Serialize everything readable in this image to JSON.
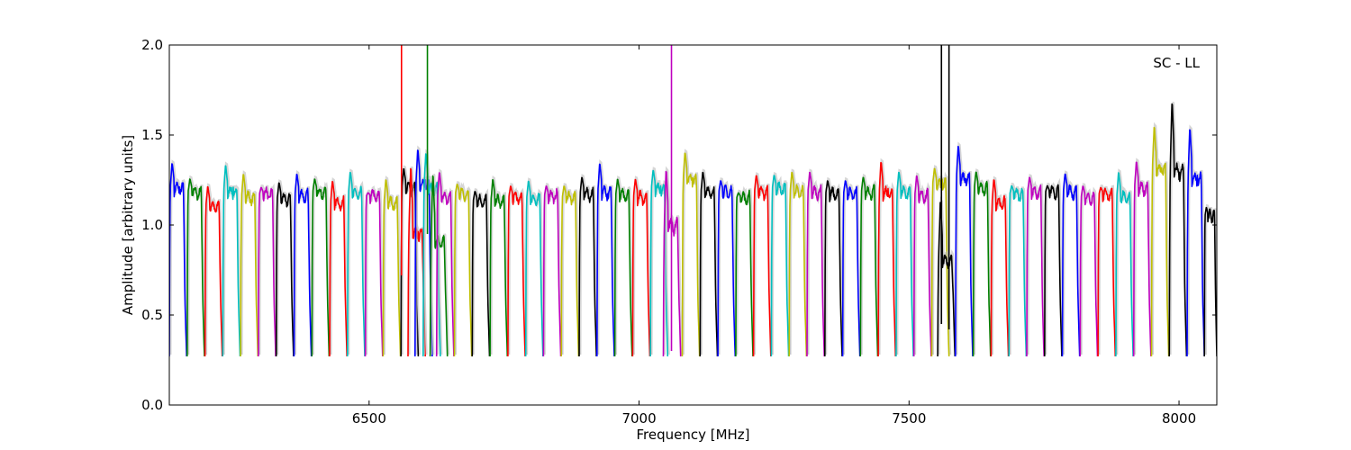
{
  "chart_data": {
    "type": "line",
    "annotation": "SC - LL",
    "xlabel": "Frequency [MHz]",
    "ylabel": "Amplitude [arbitrary units]",
    "xlim": [
      6130,
      8070
    ],
    "ylim": [
      0.0,
      2.0
    ],
    "xticks": [
      6500,
      7000,
      7500,
      8000
    ],
    "xtick_labels": [
      "6500",
      "7000",
      "7500",
      "8000"
    ],
    "yticks": [
      0.0,
      0.5,
      1.0,
      1.5,
      2.0
    ],
    "ytick_labels": [
      "0.0",
      "0.5",
      "1.0",
      "1.5",
      "2.0"
    ],
    "grid": false,
    "legend": "none",
    "colors": [
      "#0000ff",
      "#008000",
      "#ff0000",
      "#00bfbf",
      "#bfbf00",
      "#000000",
      "#bf00bf"
    ],
    "shadow_color": "#bbbbbb",
    "channel_width_mhz": 32,
    "series": [
      {
        "color": "#0000ff",
        "x_start": 6130,
        "x_end": 6162,
        "level": 1.2,
        "peak": 1.35
      },
      {
        "color": "#008000",
        "x_start": 6163,
        "x_end": 6195,
        "level": 1.18,
        "peak": 1.26
      },
      {
        "color": "#ff0000",
        "x_start": 6196,
        "x_end": 6228,
        "level": 1.1,
        "peak": 1.22
      },
      {
        "color": "#00bfbf",
        "x_start": 6229,
        "x_end": 6261,
        "level": 1.18,
        "peak": 1.34
      },
      {
        "color": "#bfbf00",
        "x_start": 6262,
        "x_end": 6294,
        "level": 1.15,
        "peak": 1.29
      },
      {
        "color": "#bf00bf",
        "x_start": 6295,
        "x_end": 6327,
        "level": 1.17,
        "peak": 1.21
      },
      {
        "color": "#000000",
        "x_start": 6328,
        "x_end": 6360,
        "level": 1.14,
        "peak": 1.24
      },
      {
        "color": "#0000ff",
        "x_start": 6361,
        "x_end": 6393,
        "level": 1.16,
        "peak": 1.29
      },
      {
        "color": "#008000",
        "x_start": 6394,
        "x_end": 6426,
        "level": 1.18,
        "peak": 1.26
      },
      {
        "color": "#ff0000",
        "x_start": 6427,
        "x_end": 6459,
        "level": 1.12,
        "peak": 1.25
      },
      {
        "color": "#00bfbf",
        "x_start": 6460,
        "x_end": 6492,
        "level": 1.17,
        "peak": 1.3
      },
      {
        "color": "#bf00bf",
        "x_start": 6493,
        "x_end": 6525,
        "level": 1.16,
        "peak": 1.18
      },
      {
        "color": "#bfbf00",
        "x_start": 6526,
        "x_end": 6558,
        "level": 1.12,
        "peak": 1.26
      },
      {
        "color": "#000000",
        "x_start": 6559,
        "x_end": 6591,
        "level": 1.2,
        "peak": 1.32
      },
      {
        "color": "#ff0000",
        "x_start": 6572,
        "x_end": 6604,
        "level": 0.95,
        "peak": 1.34
      },
      {
        "color": "#0000ff",
        "x_start": 6585,
        "x_end": 6617,
        "level": 1.22,
        "peak": 1.43
      },
      {
        "color": "#00bfbf",
        "x_start": 6600,
        "x_end": 6632,
        "level": 1.2,
        "peak": 1.41
      },
      {
        "color": "#008000",
        "x_start": 6613,
        "x_end": 6645,
        "level": 0.9,
        "peak": 1.3
      },
      {
        "color": "#bf00bf",
        "x_start": 6625,
        "x_end": 6657,
        "level": 1.15,
        "peak": 1.3
      },
      {
        "color": "#bfbf00",
        "x_start": 6658,
        "x_end": 6690,
        "level": 1.17,
        "peak": 1.23
      },
      {
        "color": "#000000",
        "x_start": 6691,
        "x_end": 6723,
        "level": 1.13,
        "peak": 1.19
      },
      {
        "color": "#008000",
        "x_start": 6724,
        "x_end": 6756,
        "level": 1.13,
        "peak": 1.26
      },
      {
        "color": "#ff0000",
        "x_start": 6757,
        "x_end": 6789,
        "level": 1.15,
        "peak": 1.22
      },
      {
        "color": "#00bfbf",
        "x_start": 6790,
        "x_end": 6822,
        "level": 1.14,
        "peak": 1.25
      },
      {
        "color": "#bf00bf",
        "x_start": 6823,
        "x_end": 6855,
        "level": 1.16,
        "peak": 1.22
      },
      {
        "color": "#bfbf00",
        "x_start": 6856,
        "x_end": 6888,
        "level": 1.15,
        "peak": 1.22
      },
      {
        "color": "#000000",
        "x_start": 6889,
        "x_end": 6921,
        "level": 1.17,
        "peak": 1.27
      },
      {
        "color": "#0000ff",
        "x_start": 6922,
        "x_end": 6954,
        "level": 1.18,
        "peak": 1.35
      },
      {
        "color": "#008000",
        "x_start": 6955,
        "x_end": 6987,
        "level": 1.16,
        "peak": 1.26
      },
      {
        "color": "#ff0000",
        "x_start": 6988,
        "x_end": 7020,
        "level": 1.15,
        "peak": 1.26
      },
      {
        "color": "#00bfbf",
        "x_start": 7021,
        "x_end": 7053,
        "level": 1.2,
        "peak": 1.31
      },
      {
        "color": "#bf00bf",
        "x_start": 7045,
        "x_end": 7077,
        "level": 1.0,
        "peak": 1.32
      },
      {
        "color": "#bfbf00",
        "x_start": 7080,
        "x_end": 7112,
        "level": 1.25,
        "peak": 1.41
      },
      {
        "color": "#000000",
        "x_start": 7113,
        "x_end": 7145,
        "level": 1.18,
        "peak": 1.3
      },
      {
        "color": "#0000ff",
        "x_start": 7146,
        "x_end": 7178,
        "level": 1.18,
        "peak": 1.25
      },
      {
        "color": "#008000",
        "x_start": 7179,
        "x_end": 7211,
        "level": 1.15,
        "peak": 1.18
      },
      {
        "color": "#ff0000",
        "x_start": 7212,
        "x_end": 7244,
        "level": 1.18,
        "peak": 1.28
      },
      {
        "color": "#00bfbf",
        "x_start": 7245,
        "x_end": 7277,
        "level": 1.2,
        "peak": 1.28
      },
      {
        "color": "#bfbf00",
        "x_start": 7278,
        "x_end": 7310,
        "level": 1.18,
        "peak": 1.3
      },
      {
        "color": "#bf00bf",
        "x_start": 7311,
        "x_end": 7343,
        "level": 1.18,
        "peak": 1.3
      },
      {
        "color": "#000000",
        "x_start": 7344,
        "x_end": 7376,
        "level": 1.17,
        "peak": 1.25
      },
      {
        "color": "#0000ff",
        "x_start": 7377,
        "x_end": 7409,
        "level": 1.17,
        "peak": 1.25
      },
      {
        "color": "#008000",
        "x_start": 7410,
        "x_end": 7442,
        "level": 1.18,
        "peak": 1.27
      },
      {
        "color": "#ff0000",
        "x_start": 7443,
        "x_end": 7475,
        "level": 1.17,
        "peak": 1.36
      },
      {
        "color": "#00bfbf",
        "x_start": 7476,
        "x_end": 7508,
        "level": 1.18,
        "peak": 1.3
      },
      {
        "color": "#bf00bf",
        "x_start": 7509,
        "x_end": 7541,
        "level": 1.16,
        "peak": 1.28
      },
      {
        "color": "#bfbf00",
        "x_start": 7542,
        "x_end": 7574,
        "level": 1.22,
        "peak": 1.32
      },
      {
        "color": "#000000",
        "x_start": 7553,
        "x_end": 7585,
        "level": 0.8,
        "peak": 1.15
      },
      {
        "color": "#0000ff",
        "x_start": 7586,
        "x_end": 7618,
        "level": 1.25,
        "peak": 1.45
      },
      {
        "color": "#008000",
        "x_start": 7619,
        "x_end": 7651,
        "level": 1.2,
        "peak": 1.3
      },
      {
        "color": "#ff0000",
        "x_start": 7652,
        "x_end": 7684,
        "level": 1.12,
        "peak": 1.26
      },
      {
        "color": "#00bfbf",
        "x_start": 7685,
        "x_end": 7717,
        "level": 1.17,
        "peak": 1.22
      },
      {
        "color": "#bf00bf",
        "x_start": 7718,
        "x_end": 7750,
        "level": 1.18,
        "peak": 1.27
      },
      {
        "color": "#000000",
        "x_start": 7751,
        "x_end": 7783,
        "level": 1.18,
        "peak": 1.22
      },
      {
        "color": "#0000ff",
        "x_start": 7784,
        "x_end": 7816,
        "level": 1.18,
        "peak": 1.29
      },
      {
        "color": "#bf00bf",
        "x_start": 7817,
        "x_end": 7849,
        "level": 1.15,
        "peak": 1.22
      },
      {
        "color": "#ff0000",
        "x_start": 7850,
        "x_end": 7882,
        "level": 1.17,
        "peak": 1.21
      },
      {
        "color": "#00bfbf",
        "x_start": 7883,
        "x_end": 7915,
        "level": 1.15,
        "peak": 1.3
      },
      {
        "color": "#bf00bf",
        "x_start": 7916,
        "x_end": 7948,
        "level": 1.2,
        "peak": 1.36
      },
      {
        "color": "#bfbf00",
        "x_start": 7949,
        "x_end": 7981,
        "level": 1.3,
        "peak": 1.56
      },
      {
        "color": "#000000",
        "x_start": 7982,
        "x_end": 8014,
        "level": 1.3,
        "peak": 1.7
      },
      {
        "color": "#0000ff",
        "x_start": 8015,
        "x_end": 8047,
        "level": 1.25,
        "peak": 1.55
      },
      {
        "color": "#000000",
        "x_start": 8047,
        "x_end": 8070,
        "level": 1.05,
        "peak": 1.1
      }
    ],
    "spikes": [
      {
        "color": "#ff0000",
        "x": 6560,
        "y_low": 0.72,
        "y_high": 2.0
      },
      {
        "color": "#008000",
        "x": 6608,
        "y_low": 0.95,
        "y_high": 2.0
      },
      {
        "color": "#bf00bf",
        "x": 7060,
        "y_low": 0.3,
        "y_high": 2.0
      },
      {
        "color": "#000000",
        "x": 7560,
        "y_low": 0.45,
        "y_high": 2.0
      },
      {
        "color": "#000000",
        "x": 7574,
        "y_low": 0.42,
        "y_high": 2.0
      }
    ]
  }
}
